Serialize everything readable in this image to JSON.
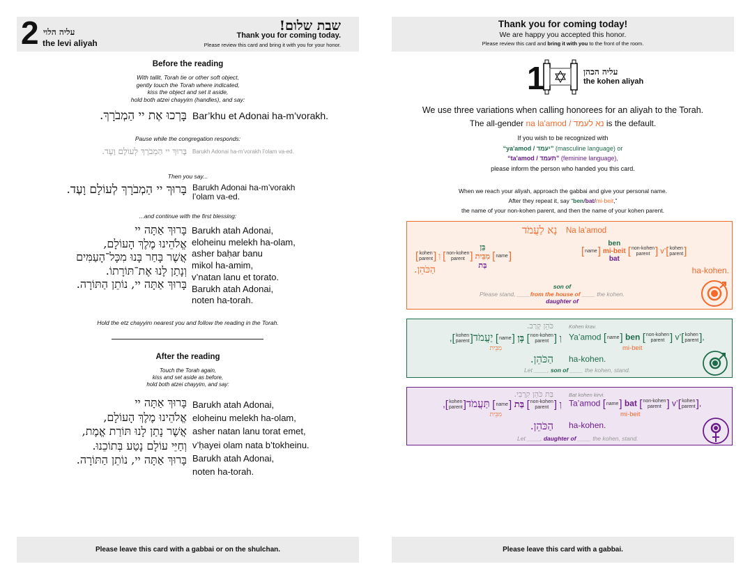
{
  "levi_card": {
    "number": "2",
    "aliyah_hebrew": "עליה הלוי",
    "aliyah_english": "the levi aliyah",
    "greeting_hebrew": "שבת שלום!",
    "thanks": "Thank you for coming today.",
    "review_note": "Please review this card and bring it with you for your honor.",
    "before": {
      "heading": "Before the reading",
      "instructions": [
        "With tallit, Torah tie or other soft object,",
        "gently touch the Torah where indicated,",
        "kiss the object and set it aside,",
        "hold both atzei chayyim (handles), and say:"
      ],
      "call_hebrew": "בָּרְכוּ אֶת יי הַמְבֹרָךְ.",
      "call_translit": "Bar’khu et Adonai ha-m’vorakh.",
      "pause_note": "Pause while the congregation responds:",
      "response_hebrew": "בָּרוּךְ יי הַמְבֹרָךְ לְעוֹלָם וָעֶד.",
      "response_translit": "Barukh Adonai ha-m’vorakh l’olam va-ed.",
      "then_note": "Then you say...",
      "repeat_hebrew": "בָּרוּךְ יי הַמְבֹרָךְ לְעוֹלָם וָעֶד.",
      "repeat_translit": [
        "Barukh Adonai ha-m’vorakh",
        "l’olam va-ed."
      ],
      "continue_note": "...and continue with the first blessing:",
      "blessing_hebrew": [
        "בָּרוּךְ אַתָּה יי",
        "אֱלֹהֵינוּ מֶלֶךְ הָעוֹלָם,",
        "אֲשֶׁר בָּחַר בָּנוּ מִכָּל־הָעַמִּים",
        "וְנָתַן לָנוּ אֶת־תּוֹרָתוֹ.",
        "בָּרוּךְ אַתָּה יי, נוֹתֵן הַתּוֹרָה."
      ],
      "blessing_translit": [
        "Barukh atah Adonai,",
        "eloheinu melekh ha-olam,",
        "asher baḥar banu",
        "mikol ha-amim,",
        "v’natan lanu et torato.",
        "Barukh atah Adonai,",
        "noten ha-torah."
      ],
      "follow_note": "Hold the etz chayyim nearest you and follow the reading in the Torah."
    },
    "after": {
      "heading": "After the reading",
      "instructions": [
        "Touch the Torah again,",
        "kiss and set aside as before,",
        "hold both atzei chayyim, and say:"
      ],
      "blessing_hebrew": [
        "בָּרוּךְ אַתָּה יי",
        "אֱלֹהֵינוּ מֶלֶךְ הָעוֹלָם,",
        "אֲשֶׁר נָתַן לָנוּ תּוֹרַת אֱמֶת,",
        "וְחַיֵּי עוֹלָם נָטַע בְּתוֹכֵנוּ.",
        "בָּרוּךְ אַתָּה יי, נוֹתֵן הַתּוֹרָה."
      ],
      "blessing_translit": [
        "Barukh atah Adonai,",
        "eloheinu melekh ha-olam,",
        "asher natan lanu torat emet,",
        "v’ḥayei olam nata b’tokheinu.",
        "Barukh atah Adonai,",
        "noten ha-torah."
      ]
    },
    "footer": "Please leave this card with a gabbai or on the shulchan."
  },
  "kohen_card": {
    "title": "Thank you for coming today!",
    "subtitle": "We are happy you accepted this honor.",
    "review_pre": "Please review this card and ",
    "review_bold": "bring it with you",
    "review_post": " to the front of the room.",
    "number": "1",
    "aliyah_hebrew": "עליה הכהן",
    "aliyah_english": "the kohen aliyah",
    "intro": "We use three variations when calling honorees for an aliyah to the Torah.",
    "default_pre": "The all-gender ",
    "default_term": "na la'amod / נא לעמד",
    "default_post": " is the default.",
    "recognize_line1": "If you wish to be recognized with",
    "masc_term": "“ya'amod / יעמד”",
    "masc_post": " (masculine language) or",
    "fem_term": "“ta'amod / תעמד”",
    "fem_post": " (feminine language),",
    "inform_line": "please inform the person who handed you this card.",
    "reach_line": "When we reach your aliyah, approach the gabbai and give your personal name.",
    "repeat_pre": "After they repeat it, say “",
    "repeat_ben": "ben",
    "repeat_bat": "bat",
    "repeat_mibeit": "mi-beit",
    "repeat_post": ",”",
    "parent_line": "the name of your non-kohen parent, and then the name of your kohen parent.",
    "placeholders": {
      "kohen_1": "kohen",
      "kohen_2": "parent",
      "nonkohen_1": "non-kohen",
      "nonkohen_2": "parent",
      "name": "name"
    },
    "neutral": {
      "hebrew_call": "נָא לַעֲמֹד",
      "translit_call": "Na la’amod",
      "he_ben": "בֵּן",
      "he_mibeit": "מִבֵּית",
      "he_bat": "בַּת",
      "he_and": "וְ",
      "ben": "ben",
      "mibeit": "mi-beit",
      "bat": "bat",
      "vprefix": "v’",
      "he_kohen": "הַכֹּהֵן.",
      "en_kohen": "ha-kohen.",
      "en_pre": "Please stand, ____",
      "en_house": "from the house of",
      "en_post": " ____ the kohen.",
      "en_son": "son of",
      "en_daughter": "daughter of",
      "color": "#f26a2c",
      "bg": "#fdeee6"
    },
    "masculine": {
      "hebrew_head": "כֹּהֵן קְרַב.",
      "translit_head": "Kohen krav.",
      "hebrew_call": "יַעֲמֹד",
      "he_ben": "בֶּן",
      "he_mibeit": "מִבֵּית",
      "he_and": "וְ",
      "translit_call": "Ya’amod",
      "ben": "ben",
      "mibeit": "mi-beit",
      "vprefix": "v’",
      "he_kohen": "הַכֹּהֵן.",
      "en_kohen": "ha-kohen.",
      "en_pre": "Let ____, ",
      "en_mid": "son of",
      "en_post": " ____ the kohen, stand.",
      "color": "#1e6b4a",
      "bg": "#e6efeb"
    },
    "feminine": {
      "hebrew_head": "בַּת כֹּהֵן קִרְבִי.",
      "translit_head": "Bat kohen kirvi.",
      "hebrew_call": "תַּעֲמֹד",
      "he_bat": "בַּת",
      "he_mibeit": "מִבֵּית",
      "he_and": "וְ",
      "translit_call": "Ta’amod",
      "bat": "bat",
      "mibeit": "mi-beit",
      "vprefix": "v’",
      "he_kohen": "הַכֹּהֵן.",
      "en_kohen": "ha-kohen.",
      "en_pre": "Let ____, ",
      "en_mid": "daughter of",
      "en_post": " ____ the kohen, stand.",
      "color": "#6a1b8a",
      "bg": "#efe4f2"
    },
    "footer": "Please leave this card with a gabbai."
  }
}
